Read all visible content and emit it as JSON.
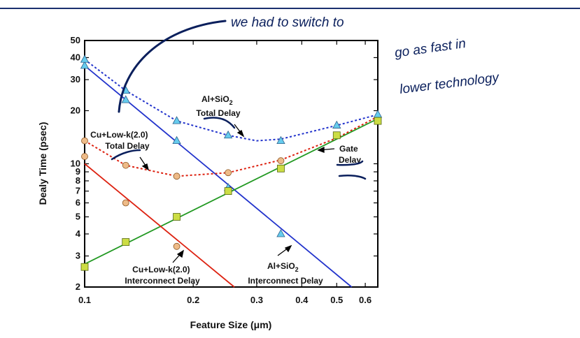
{
  "chart_data": {
    "type": "line",
    "xlabel": "Feature Size (μm)",
    "ylabel": "Dealy Time (psec)",
    "xscale": "log",
    "yscale": "log",
    "xlim": [
      0.1,
      0.65
    ],
    "ylim": [
      2,
      50
    ],
    "x_ticks": [
      0.1,
      0.2,
      0.3,
      0.4,
      0.5,
      0.6
    ],
    "x_tick_labels": [
      "0.1",
      "0.2",
      "0.3",
      "0.4",
      "0.5",
      "0.6"
    ],
    "y_ticks": [
      2,
      3,
      4,
      5,
      6,
      7,
      8,
      9,
      10,
      20,
      30,
      40,
      50
    ],
    "y_tick_labels": [
      "2",
      "3",
      "4",
      "5",
      "6",
      "7",
      "8",
      "9",
      "10",
      "20",
      "30",
      "40",
      "50"
    ],
    "series": [
      {
        "key": "al_sio2_interconnect",
        "color": "#2233cc",
        "style": "solid",
        "line_x": [
          0.1,
          0.55
        ],
        "line_y": [
          36,
          2
        ],
        "marker": "triangle",
        "marker_color": "#66ccee",
        "markers_x": [
          0.1,
          0.13,
          0.18,
          0.25,
          0.35,
          0.5,
          0.65
        ],
        "markers_y": [
          36,
          23,
          13.5,
          7.3,
          4,
          null,
          null
        ]
      },
      {
        "key": "al_sio2_total",
        "color": "#2233cc",
        "style": "dotted",
        "line_x": [
          0.1,
          0.13,
          0.18,
          0.25,
          0.3,
          0.35,
          0.5,
          0.65
        ],
        "line_y": [
          39,
          26,
          17.5,
          14.5,
          13.5,
          13.8,
          16.5,
          19
        ],
        "marker": "triangle",
        "marker_color": "#66ccee",
        "markers_x": [
          0.1,
          0.13,
          0.18,
          0.25,
          0.35,
          0.5,
          0.65
        ],
        "markers_y": [
          39,
          26,
          17.5,
          14.5,
          13.5,
          16.5,
          19
        ]
      },
      {
        "key": "gate_delay",
        "color": "#229922",
        "style": "solid",
        "line_x": [
          0.1,
          0.65
        ],
        "line_y": [
          2.7,
          18
        ],
        "marker": "square",
        "marker_color": "#ccdd44",
        "markers_x": [
          0.1,
          0.13,
          0.18,
          0.25,
          0.35,
          0.5,
          0.65
        ],
        "markers_y": [
          2.6,
          3.6,
          5,
          7,
          9.4,
          14.5,
          17.5
        ]
      },
      {
        "key": "cu_lowk_interconnect",
        "color": "#dd2211",
        "style": "solid",
        "line_x": [
          0.1,
          0.26
        ],
        "line_y": [
          10,
          2
        ],
        "marker": "circle",
        "marker_color": "#eebb88",
        "markers_x": [
          0.1,
          0.13,
          0.18
        ],
        "markers_y": [
          11,
          6,
          3.4
        ]
      },
      {
        "key": "cu_lowk_total",
        "color": "#dd2211",
        "style": "dotted",
        "line_x": [
          0.1,
          0.13,
          0.18,
          0.25,
          0.35,
          0.5,
          0.65
        ],
        "line_y": [
          13.5,
          9.8,
          8.5,
          8.9,
          10.5,
          14,
          18.5
        ],
        "marker": "circle",
        "marker_color": "#eebb88",
        "markers_x": [
          0.1,
          0.13,
          0.18,
          0.25,
          0.35
        ],
        "markers_y": [
          13.5,
          9.8,
          8.5,
          8.9,
          10.4
        ]
      }
    ],
    "annotations": [
      {
        "key": "al_total",
        "lines": [
          "Al+SiO",
          "Total Delay"
        ],
        "subscript": "2"
      },
      {
        "key": "cu_total",
        "lines": [
          "Cu+Low-k(2.0)",
          "Total Delay"
        ]
      },
      {
        "key": "gate",
        "lines": [
          "Gate",
          "Delay"
        ]
      },
      {
        "key": "cu_inter",
        "lines": [
          "Cu+Low-k(2.0)",
          "Interconnect Delay"
        ]
      },
      {
        "key": "al_inter",
        "lines": [
          "Al+SiO",
          "Interconnect Delay"
        ],
        "subscript": "2"
      }
    ]
  },
  "handwriting": {
    "line1": "we had to switch to",
    "line2": "go as fast in",
    "line3": "lower technology",
    "ink_color": "#0a1f5c"
  }
}
